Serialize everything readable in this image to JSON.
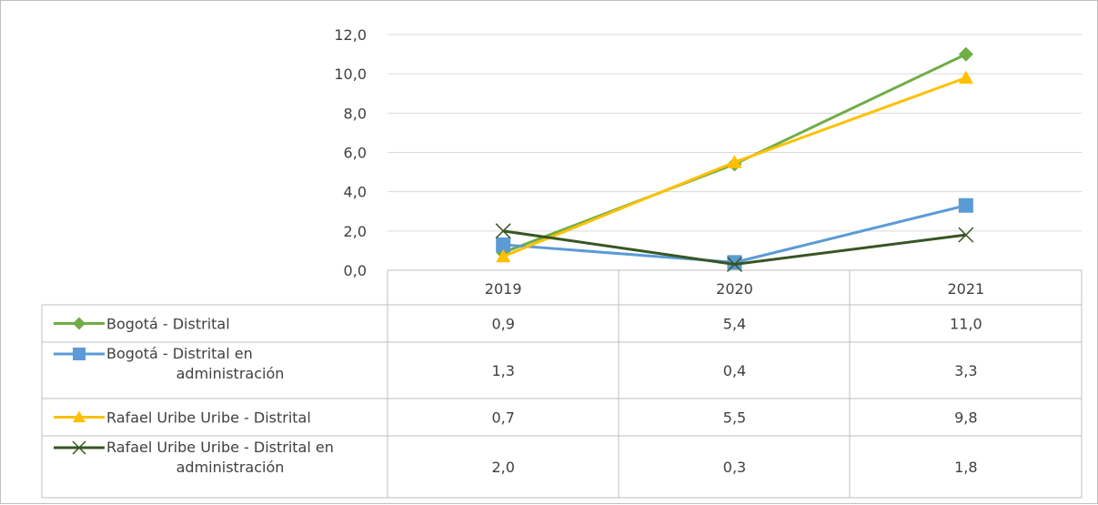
{
  "chart_data": {
    "type": "line",
    "categories": [
      "2019",
      "2020",
      "2021"
    ],
    "ylim": [
      0,
      12
    ],
    "yticks": [
      "0,0",
      "2,0",
      "4,0",
      "6,0",
      "8,0",
      "10,0",
      "12,0"
    ],
    "grid": true,
    "legend": "data-table",
    "series": [
      {
        "name": "Bogotá - Distrital",
        "name_lines": [
          "Bogotá - Distrital"
        ],
        "values": [
          0.9,
          5.4,
          11.0
        ],
        "labels": [
          "0,9",
          "5,4",
          "11,0"
        ],
        "color": "#70ad47",
        "marker": "diamond"
      },
      {
        "name": "Bogotá - Distrital en administración",
        "name_lines": [
          "Bogotá - Distrital en",
          "administración"
        ],
        "values": [
          1.3,
          0.4,
          3.3
        ],
        "labels": [
          "1,3",
          "0,4",
          "3,3"
        ],
        "color": "#5b9bd5",
        "marker": "square"
      },
      {
        "name": "Rafael Uribe Uribe - Distrital",
        "name_lines": [
          "Rafael Uribe Uribe - Distrital"
        ],
        "values": [
          0.7,
          5.5,
          9.8
        ],
        "labels": [
          "0,7",
          "5,5",
          "9,8"
        ],
        "color": "#ffc000",
        "marker": "triangle"
      },
      {
        "name": "Rafael Uribe Uribe - Distrital en administración",
        "name_lines": [
          "Rafael Uribe Uribe - Distrital en",
          "administración"
        ],
        "values": [
          2.0,
          0.3,
          1.8
        ],
        "labels": [
          "2,0",
          "0,3",
          "1,8"
        ],
        "color": "#375623",
        "marker": "x"
      }
    ]
  }
}
